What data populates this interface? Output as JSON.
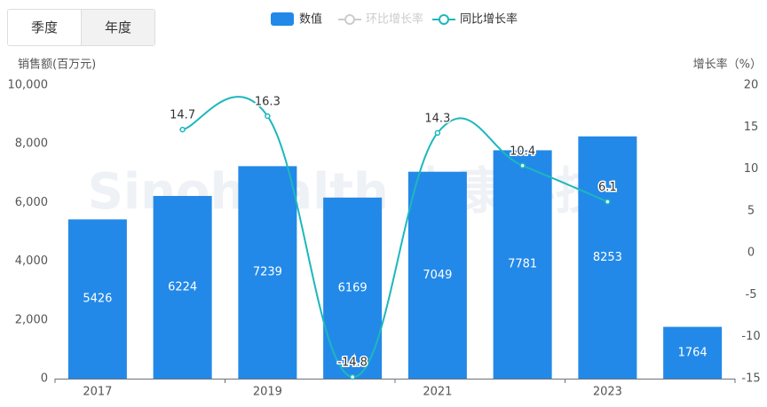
{
  "tabs": [
    "季度",
    "年度"
  ],
  "chart_data": {
    "type": "bar-line",
    "watermark": "Sinohealth 中康科技",
    "y_label": "销售额(百万元)",
    "y2_label": "增长率（%）",
    "categories": [
      "2017",
      null,
      "2019",
      null,
      "2021",
      null,
      "2023",
      null
    ],
    "series": [
      {
        "name": "数值",
        "type": "bar",
        "color": "#2389e8",
        "values": [
          5426,
          6224,
          7239,
          6169,
          7049,
          7781,
          8253,
          1764
        ]
      },
      {
        "name": "环比增长率",
        "type": "line",
        "axis": "y2",
        "color": "#cccccc",
        "values": [
          null,
          null,
          null,
          null,
          null,
          null,
          null,
          null
        ]
      },
      {
        "name": "同比增长率",
        "type": "line",
        "axis": "y2",
        "color": "#1cb8bd",
        "values": [
          null,
          14.7,
          16.3,
          -14.8,
          14.3,
          10.4,
          6.1,
          null
        ]
      }
    ],
    "ylim": [
      0,
      10000
    ],
    "yticks": [
      0,
      {
        "value": 2000,
        "label": "2,000"
      },
      {
        "value": 4000,
        "label": "4,000"
      },
      {
        "value": 6000,
        "label": "6,000"
      },
      {
        "value": 8000,
        "label": "8,000"
      },
      {
        "value": 10000,
        "label": "10,000"
      }
    ],
    "y2lim": [
      -15,
      20
    ],
    "y2ticks": [
      -15,
      -10,
      -5,
      0,
      5,
      10,
      15,
      20
    ]
  }
}
